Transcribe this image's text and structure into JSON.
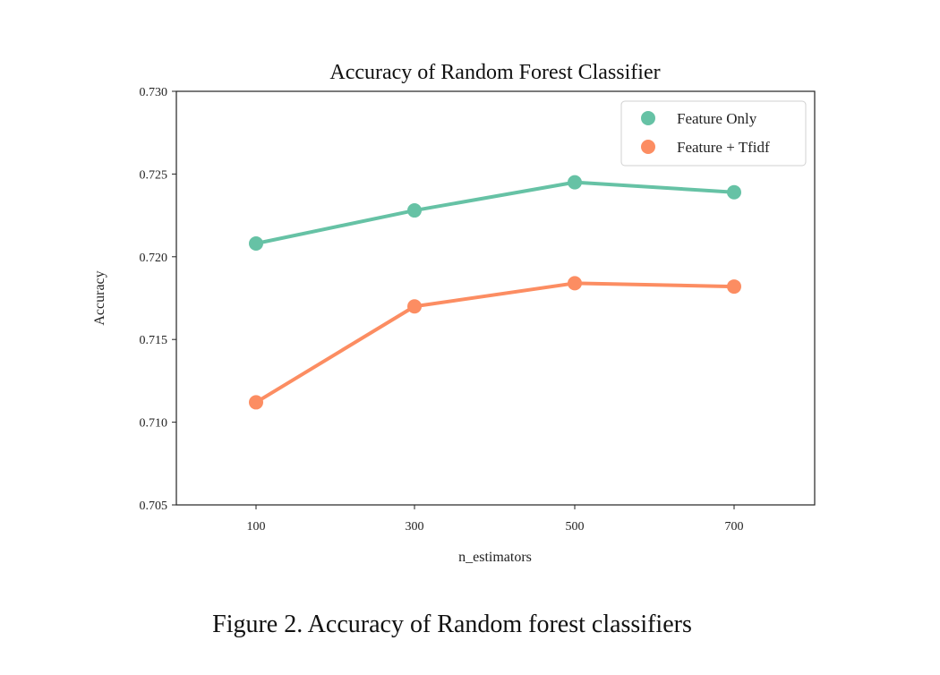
{
  "chart_data": {
    "type": "line",
    "title": "Accuracy of Random Forest Classifier",
    "xlabel": "n_estimators",
    "ylabel": "Accuracy",
    "categories": [
      "100",
      "300",
      "500",
      "700"
    ],
    "ylim": [
      0.705,
      0.73
    ],
    "yticks": [
      "0.705",
      "0.710",
      "0.715",
      "0.720",
      "0.725",
      "0.730"
    ],
    "grid": false,
    "legend_position": "top-right",
    "series": [
      {
        "name": "Feature Only",
        "color": "#66c2a5",
        "values": [
          0.7208,
          0.7228,
          0.7245,
          0.7239
        ]
      },
      {
        "name": "Feature + Tfidf",
        "color": "#fc8d62",
        "values": [
          0.7112,
          0.717,
          0.7184,
          0.7182
        ]
      }
    ]
  },
  "caption": "Figure 2. Accuracy of Random forest classifiers"
}
